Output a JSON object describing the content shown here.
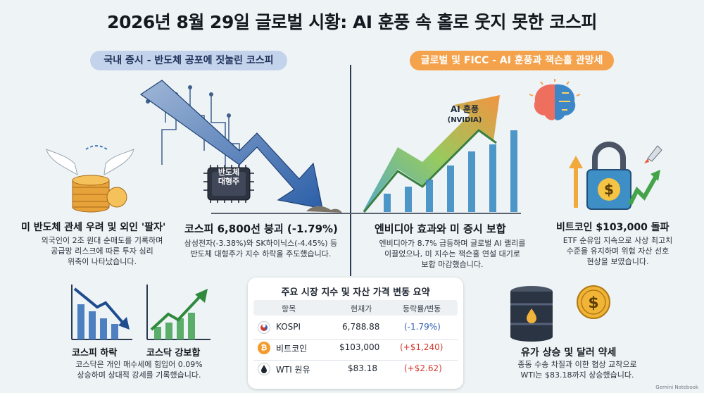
{
  "title": "2026년 8월 29일 글로벌 시황: AI 훈풍 속 홀로 웃지 못한 코스피",
  "banners": {
    "left": "국내 증시 - 반도체 공포에 짓눌린 코스피",
    "right": "글로벌 및 FICC - AI 훈풍과 잭슨홀 관망세"
  },
  "chip_label": [
    "반도체",
    "대형주"
  ],
  "ai_label": [
    "AI 훈풍",
    "(NVIDIA)"
  ],
  "sections": {
    "foreign_selling": {
      "heading": "미 반도체 관세 우려 및 외인 '팔자'",
      "lines": [
        "외국인이 2조 원대 순매도를 기록하며",
        "공급망 리스크에 따른 투자 심리",
        "위축이 나타났습니다."
      ]
    },
    "kospi_crash": {
      "heading": "코스피 6,800선 붕괴 (-1.79%)",
      "lines": [
        "삼성전자(-3.38%)와 SK하이닉스(-4.45%) 등",
        "반도체 대형주가 지수 하락을 주도했습니다."
      ]
    },
    "nvidia": {
      "heading": "엔비디아 효과와 미 증시 보합",
      "lines": [
        "엔비디아가 8.7% 급등하며 글로벌 AI 랠리를",
        "이끌었으나, 미 지수는 잭슨홀 연설 대기로",
        "보합 마감했습니다."
      ]
    },
    "bitcoin": {
      "heading": "비트코인 $103,000 돌파",
      "lines": [
        "ETF 순유입 지속으로 사상 최고치",
        "수준을 유지하며 위험 자산 선호",
        "현상을 보였습니다."
      ]
    },
    "kosdaq": {
      "label_down": "코스피 하락",
      "label_up": "코스닥 강보합",
      "lines": [
        "코스닥은 개인 매수세에 힘입어 0.09%",
        "상승하며 상대적 강세를 기록했습니다."
      ]
    },
    "oil": {
      "heading": "유가 상승 및 달러 약세",
      "lines": [
        "종동 수송 차질과 이한 협상 교착으로",
        "WTI는 $83.18까지 상승했습니다."
      ]
    }
  },
  "table": {
    "title": "주요 시장 지수 및 자산 가격 변동 요약",
    "headers": [
      "항목",
      "현재가",
      "등락률/변동"
    ],
    "rows": [
      {
        "name": "KOSPI",
        "price": "6,788.88",
        "change": "(-1.79%)",
        "direction": "down"
      },
      {
        "name": "비트코인",
        "price": "$103,000",
        "change": "(+$1,240)",
        "direction": "up"
      },
      {
        "name": "WTI 원유",
        "price": "$83.18",
        "change": "(+$2.62)",
        "direction": "up"
      }
    ]
  },
  "watermark": "Gemini Notebook",
  "colors": {
    "background": "#eef3f6",
    "down_blue": "#2f5fb3",
    "up_red": "#d23a2f",
    "accent_orange": "#f4a24c",
    "banner_blue": "#c3d3ec"
  }
}
